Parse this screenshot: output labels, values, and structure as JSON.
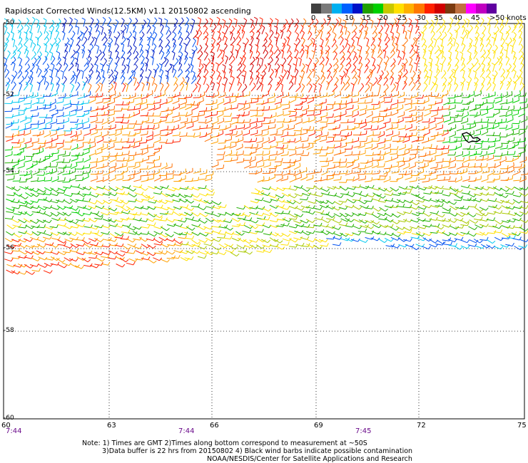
{
  "title": "Rapidscat Corrected Winds(12.5KM) v1.1 20150802 ascending",
  "legend": {
    "labels": [
      "0",
      "5",
      "10",
      "15",
      "20",
      "25",
      "30",
      "35",
      "40",
      "45",
      ">50 knots"
    ],
    "colors": [
      "#404040",
      "#7a7a7a",
      "#00b0f0",
      "#0060ff",
      "#0010c8",
      "#20a000",
      "#00d000",
      "#c8c800",
      "#ffe000",
      "#ffb000",
      "#ff7800",
      "#ff2000",
      "#d00000",
      "#7a3a10",
      "#c07040",
      "#ff00ff",
      "#c000c0",
      "#6000a0"
    ]
  },
  "map": {
    "lat_labels": [
      "-50",
      "-52",
      "-54",
      "-56",
      "-58",
      "-60"
    ],
    "lon_labels": [
      "60",
      "63",
      "66",
      "69",
      "72",
      "75"
    ],
    "times": [
      "7:44",
      "7:44",
      "7:45"
    ]
  },
  "notes": {
    "line1": "Note: 1) Times are GMT 2)Times along bottom correspond to measurement at ~50S",
    "line2": "3)Data buffer is 22 hrs from 20150802 4) Black wind barbs indicate possible contamination",
    "line3": "NOAA/NESDIS/Center for Satellite Applications and Research"
  }
}
